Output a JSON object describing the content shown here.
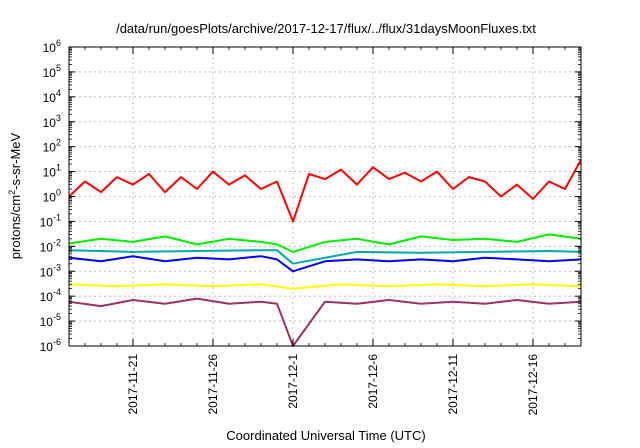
{
  "chart_data": {
    "type": "line",
    "title": "/data/run/goesPlots/archive/2017-12-17/flux/../flux/31daysMoonFluxes.txt",
    "xlabel": "Coordinated Universal Time (UTC)",
    "ylabel": {
      "prefix": "protons/cm",
      "sup": "2",
      "suffix": "-s-sr-MeV"
    },
    "x_range": [
      "2017-11-17",
      "2017-12-19"
    ],
    "x_ticks": [
      "2017-11-21",
      "2017-11-26",
      "2017-12-1",
      "2017-12-6",
      "2017-12-11",
      "2017-12-16"
    ],
    "y_scale": "log",
    "ylim": [
      1e-06,
      1000000.0
    ],
    "y_ticks": [
      {
        "base": "10",
        "exp": "-6"
      },
      {
        "base": "10",
        "exp": "-5"
      },
      {
        "base": "10",
        "exp": "-4"
      },
      {
        "base": "10",
        "exp": "-3"
      },
      {
        "base": "10",
        "exp": "-2"
      },
      {
        "base": "10",
        "exp": "-1"
      },
      {
        "base": "10",
        "exp": "0"
      },
      {
        "base": "10",
        "exp": "1"
      },
      {
        "base": "10",
        "exp": "2"
      },
      {
        "base": "10",
        "exp": "3"
      },
      {
        "base": "10",
        "exp": "4"
      },
      {
        "base": "10",
        "exp": "5"
      },
      {
        "base": "10",
        "exp": "6"
      }
    ],
    "grid": true,
    "series": [
      {
        "color": "#00ee00",
        "x": [
          "2017-11-17",
          "2017-11-19",
          "2017-11-21",
          "2017-11-23",
          "2017-11-25",
          "2017-11-27",
          "2017-11-29",
          "2017-11-30",
          "2017-12-01",
          "2017-12-03",
          "2017-12-05",
          "2017-12-07",
          "2017-12-09",
          "2017-12-11",
          "2017-12-13",
          "2017-12-15",
          "2017-12-17",
          "2017-12-19"
        ],
        "y": [
          0.013,
          0.02,
          0.015,
          0.025,
          0.012,
          0.02,
          0.015,
          0.012,
          0.006,
          0.015,
          0.02,
          0.012,
          0.025,
          0.018,
          0.02,
          0.015,
          0.03,
          0.02
        ]
      },
      {
        "color": "#00aaaa",
        "x": [
          "2017-11-17",
          "2017-11-21",
          "2017-11-25",
          "2017-11-29",
          "2017-11-30",
          "2017-12-01",
          "2017-12-05",
          "2017-12-09",
          "2017-12-13",
          "2017-12-17",
          "2017-12-19"
        ],
        "y": [
          0.007,
          0.006,
          0.0065,
          0.007,
          0.007,
          0.002,
          0.006,
          0.0055,
          0.006,
          0.0065,
          0.006
        ]
      },
      {
        "color": "#0000ff",
        "x": [
          "2017-11-17",
          "2017-11-19",
          "2017-11-21",
          "2017-11-23",
          "2017-11-25",
          "2017-11-27",
          "2017-11-29",
          "2017-11-30",
          "2017-12-01",
          "2017-12-03",
          "2017-12-05",
          "2017-12-07",
          "2017-12-09",
          "2017-12-11",
          "2017-12-13",
          "2017-12-15",
          "2017-12-17",
          "2017-12-19"
        ],
        "y": [
          0.0035,
          0.0025,
          0.004,
          0.0025,
          0.0035,
          0.003,
          0.004,
          0.003,
          0.001,
          0.0025,
          0.003,
          0.0025,
          0.003,
          0.0025,
          0.0035,
          0.003,
          0.0025,
          0.003
        ]
      },
      {
        "color": "#ffff00",
        "x": [
          "2017-11-17",
          "2017-11-20",
          "2017-11-23",
          "2017-11-26",
          "2017-11-29",
          "2017-12-01",
          "2017-12-04",
          "2017-12-07",
          "2017-12-10",
          "2017-12-13",
          "2017-12-16",
          "2017-12-19"
        ],
        "y": [
          0.0003,
          0.00025,
          0.0003,
          0.00025,
          0.0003,
          0.0002,
          0.0003,
          0.00025,
          0.0003,
          0.00025,
          0.0003,
          0.00025
        ]
      },
      {
        "color": "#993366",
        "x": [
          "2017-11-17",
          "2017-11-19",
          "2017-11-21",
          "2017-11-23",
          "2017-11-25",
          "2017-11-27",
          "2017-11-29",
          "2017-11-30",
          "2017-12-01",
          "2017-12-03",
          "2017-12-05",
          "2017-12-07",
          "2017-12-09",
          "2017-12-11",
          "2017-12-13",
          "2017-12-15",
          "2017-12-17",
          "2017-12-19"
        ],
        "y": [
          6e-05,
          4e-05,
          7e-05,
          5e-05,
          8e-05,
          5e-05,
          6e-05,
          5e-05,
          1e-06,
          6e-05,
          5e-05,
          7e-05,
          5e-05,
          6e-05,
          5e-05,
          7e-05,
          5e-05,
          6e-05
        ]
      },
      {
        "color": "#ff0000",
        "x": [
          "2017-11-17",
          "2017-11-18",
          "2017-11-19",
          "2017-11-20",
          "2017-11-21",
          "2017-11-22",
          "2017-11-23",
          "2017-11-24",
          "2017-11-25",
          "2017-11-26",
          "2017-11-27",
          "2017-11-28",
          "2017-11-29",
          "2017-11-30",
          "2017-12-01",
          "2017-12-02",
          "2017-12-03",
          "2017-12-04",
          "2017-12-05",
          "2017-12-06",
          "2017-12-07",
          "2017-12-08",
          "2017-12-09",
          "2017-12-10",
          "2017-12-11",
          "2017-12-12",
          "2017-12-13",
          "2017-12-14",
          "2017-12-15",
          "2017-12-16",
          "2017-12-17",
          "2017-12-18",
          "2017-12-19"
        ],
        "y": [
          1,
          4,
          1.5,
          6,
          3,
          8,
          1.5,
          6,
          2,
          10,
          3,
          7,
          2,
          4,
          0.1,
          8,
          5,
          12,
          3,
          15,
          5,
          9,
          4,
          10,
          2,
          6,
          4,
          1,
          3,
          0.8,
          4,
          2,
          30
        ]
      }
    ]
  }
}
